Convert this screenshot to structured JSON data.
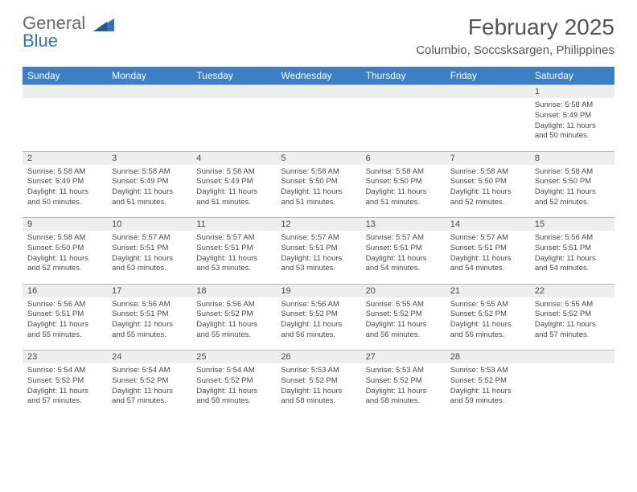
{
  "brand": {
    "line1": "General",
    "line2": "Blue"
  },
  "title": "February 2025",
  "location": "Columbio, Soccsksargen, Philippines",
  "colors": {
    "header_bg": "#3b7fc4",
    "header_text": "#ffffff",
    "date_row_bg": "#eeeeee",
    "border": "#b8b8b8",
    "text": "#4a4a4a",
    "title_text": "#555555",
    "brand_gray": "#6a6a6a",
    "brand_blue": "#2f74b5",
    "page_bg": "#ffffff"
  },
  "fonts": {
    "title_size_pt": 21,
    "location_size_pt": 11,
    "day_header_size_pt": 9,
    "date_size_pt": 8,
    "detail_size_pt": 7
  },
  "day_headers": [
    "Sunday",
    "Monday",
    "Tuesday",
    "Wednesday",
    "Thursday",
    "Friday",
    "Saturday"
  ],
  "weeks": [
    {
      "dates": [
        "",
        "",
        "",
        "",
        "",
        "",
        "1"
      ],
      "details": [
        null,
        null,
        null,
        null,
        null,
        null,
        {
          "sunrise": "Sunrise: 5:58 AM",
          "sunset": "Sunset: 5:49 PM",
          "daylight1": "Daylight: 11 hours",
          "daylight2": "and 50 minutes."
        }
      ]
    },
    {
      "dates": [
        "2",
        "3",
        "4",
        "5",
        "6",
        "7",
        "8"
      ],
      "details": [
        {
          "sunrise": "Sunrise: 5:58 AM",
          "sunset": "Sunset: 5:49 PM",
          "daylight1": "Daylight: 11 hours",
          "daylight2": "and 50 minutes."
        },
        {
          "sunrise": "Sunrise: 5:58 AM",
          "sunset": "Sunset: 5:49 PM",
          "daylight1": "Daylight: 11 hours",
          "daylight2": "and 51 minutes."
        },
        {
          "sunrise": "Sunrise: 5:58 AM",
          "sunset": "Sunset: 5:49 PM",
          "daylight1": "Daylight: 11 hours",
          "daylight2": "and 51 minutes."
        },
        {
          "sunrise": "Sunrise: 5:58 AM",
          "sunset": "Sunset: 5:50 PM",
          "daylight1": "Daylight: 11 hours",
          "daylight2": "and 51 minutes."
        },
        {
          "sunrise": "Sunrise: 5:58 AM",
          "sunset": "Sunset: 5:50 PM",
          "daylight1": "Daylight: 11 hours",
          "daylight2": "and 51 minutes."
        },
        {
          "sunrise": "Sunrise: 5:58 AM",
          "sunset": "Sunset: 5:50 PM",
          "daylight1": "Daylight: 11 hours",
          "daylight2": "and 52 minutes."
        },
        {
          "sunrise": "Sunrise: 5:58 AM",
          "sunset": "Sunset: 5:50 PM",
          "daylight1": "Daylight: 11 hours",
          "daylight2": "and 52 minutes."
        }
      ]
    },
    {
      "dates": [
        "9",
        "10",
        "11",
        "12",
        "13",
        "14",
        "15"
      ],
      "details": [
        {
          "sunrise": "Sunrise: 5:58 AM",
          "sunset": "Sunset: 5:50 PM",
          "daylight1": "Daylight: 11 hours",
          "daylight2": "and 52 minutes."
        },
        {
          "sunrise": "Sunrise: 5:57 AM",
          "sunset": "Sunset: 5:51 PM",
          "daylight1": "Daylight: 11 hours",
          "daylight2": "and 53 minutes."
        },
        {
          "sunrise": "Sunrise: 5:57 AM",
          "sunset": "Sunset: 5:51 PM",
          "daylight1": "Daylight: 11 hours",
          "daylight2": "and 53 minutes."
        },
        {
          "sunrise": "Sunrise: 5:57 AM",
          "sunset": "Sunset: 5:51 PM",
          "daylight1": "Daylight: 11 hours",
          "daylight2": "and 53 minutes."
        },
        {
          "sunrise": "Sunrise: 5:57 AM",
          "sunset": "Sunset: 5:51 PM",
          "daylight1": "Daylight: 11 hours",
          "daylight2": "and 54 minutes."
        },
        {
          "sunrise": "Sunrise: 5:57 AM",
          "sunset": "Sunset: 5:51 PM",
          "daylight1": "Daylight: 11 hours",
          "daylight2": "and 54 minutes."
        },
        {
          "sunrise": "Sunrise: 5:56 AM",
          "sunset": "Sunset: 5:51 PM",
          "daylight1": "Daylight: 11 hours",
          "daylight2": "and 54 minutes."
        }
      ]
    },
    {
      "dates": [
        "16",
        "17",
        "18",
        "19",
        "20",
        "21",
        "22"
      ],
      "details": [
        {
          "sunrise": "Sunrise: 5:56 AM",
          "sunset": "Sunset: 5:51 PM",
          "daylight1": "Daylight: 11 hours",
          "daylight2": "and 55 minutes."
        },
        {
          "sunrise": "Sunrise: 5:56 AM",
          "sunset": "Sunset: 5:51 PM",
          "daylight1": "Daylight: 11 hours",
          "daylight2": "and 55 minutes."
        },
        {
          "sunrise": "Sunrise: 5:56 AM",
          "sunset": "Sunset: 5:52 PM",
          "daylight1": "Daylight: 11 hours",
          "daylight2": "and 55 minutes."
        },
        {
          "sunrise": "Sunrise: 5:56 AM",
          "sunset": "Sunset: 5:52 PM",
          "daylight1": "Daylight: 11 hours",
          "daylight2": "and 56 minutes."
        },
        {
          "sunrise": "Sunrise: 5:55 AM",
          "sunset": "Sunset: 5:52 PM",
          "daylight1": "Daylight: 11 hours",
          "daylight2": "and 56 minutes."
        },
        {
          "sunrise": "Sunrise: 5:55 AM",
          "sunset": "Sunset: 5:52 PM",
          "daylight1": "Daylight: 11 hours",
          "daylight2": "and 56 minutes."
        },
        {
          "sunrise": "Sunrise: 5:55 AM",
          "sunset": "Sunset: 5:52 PM",
          "daylight1": "Daylight: 11 hours",
          "daylight2": "and 57 minutes."
        }
      ]
    },
    {
      "dates": [
        "23",
        "24",
        "25",
        "26",
        "27",
        "28",
        ""
      ],
      "details": [
        {
          "sunrise": "Sunrise: 5:54 AM",
          "sunset": "Sunset: 5:52 PM",
          "daylight1": "Daylight: 11 hours",
          "daylight2": "and 57 minutes."
        },
        {
          "sunrise": "Sunrise: 5:54 AM",
          "sunset": "Sunset: 5:52 PM",
          "daylight1": "Daylight: 11 hours",
          "daylight2": "and 57 minutes."
        },
        {
          "sunrise": "Sunrise: 5:54 AM",
          "sunset": "Sunset: 5:52 PM",
          "daylight1": "Daylight: 11 hours",
          "daylight2": "and 58 minutes."
        },
        {
          "sunrise": "Sunrise: 5:53 AM",
          "sunset": "Sunset: 5:52 PM",
          "daylight1": "Daylight: 11 hours",
          "daylight2": "and 58 minutes."
        },
        {
          "sunrise": "Sunrise: 5:53 AM",
          "sunset": "Sunset: 5:52 PM",
          "daylight1": "Daylight: 11 hours",
          "daylight2": "and 58 minutes."
        },
        {
          "sunrise": "Sunrise: 5:53 AM",
          "sunset": "Sunset: 5:52 PM",
          "daylight1": "Daylight: 11 hours",
          "daylight2": "and 59 minutes."
        },
        null
      ]
    }
  ]
}
